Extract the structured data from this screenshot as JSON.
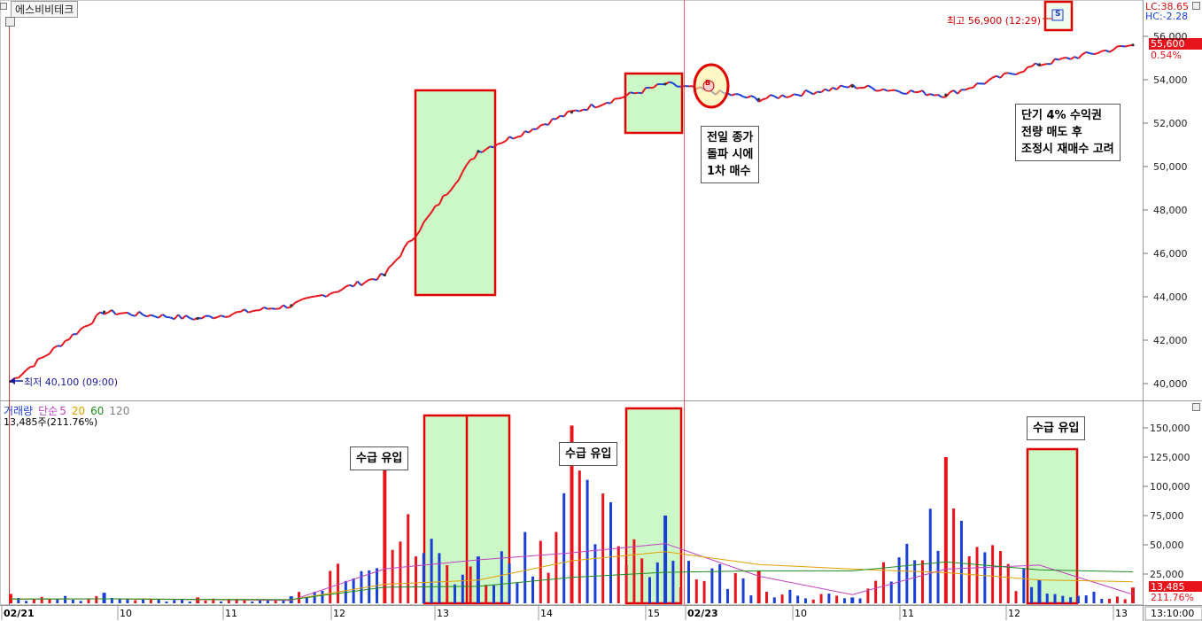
{
  "window": {
    "stock_name": "에스비비테크"
  },
  "price_panel": {
    "lc_label": "LC:38.65",
    "hc_label": "HC:-2.28",
    "current_price": "55,600",
    "change_pct": "0.54%",
    "high_label": "최고 56,900 (12:29)",
    "low_label": "최저 40,100 (09:00)",
    "buy_marker": "B",
    "sell_marker": "S",
    "y_ticks": [
      "56,000",
      "54,000",
      "52,000",
      "50,000",
      "48,000",
      "46,000",
      "44,000",
      "42,000",
      "40,000"
    ]
  },
  "volume_panel": {
    "legend": [
      "거래량",
      "단순",
      "5",
      "20",
      "60",
      "120"
    ],
    "current_volume": "13,485주(211.76%)",
    "current_volume_box": "13,485",
    "current_pct_box": "211.76%",
    "y_ticks": [
      "150,000",
      "125,000",
      "100,000",
      "75,000",
      "50,000",
      "25,000"
    ]
  },
  "x_axis": {
    "labels": [
      "02/21",
      "10",
      "11",
      "12",
      "13",
      "14",
      "15",
      "02/23",
      "10",
      "11",
      "12",
      "13"
    ],
    "time_box": "13:10:00"
  },
  "annotations": {
    "breakout": "전일 종가\n돌파 시에\n1차 매수",
    "take_profit": "단기 4% 수익권\n전량 매도 후\n조정시 재매수 고려",
    "inflow": "수급 유입"
  },
  "colors": {
    "up": "#e8141c",
    "down": "#1a3fd6",
    "highlight_fill": "#ccf8c8",
    "highlight_border": "#e00000",
    "ma5": "#c040c0",
    "ma20": "#e0a000",
    "ma60": "#1e8c1e",
    "ma120": "#808080"
  },
  "chart_data": [
    {
      "type": "candlestick",
      "title": "",
      "x": [
        "09:00",
        "10:00",
        "11:00",
        "12:00",
        "13:00",
        "14:00",
        "15:00",
        "09:00",
        "10:00",
        "11:00",
        "12:00",
        "13:00",
        "13:10"
      ],
      "y": [
        40100,
        43300,
        43000,
        43600,
        45000,
        50700,
        52500,
        53800,
        53100,
        53700,
        53300,
        54700,
        55600
      ],
      "ylim": [
        39300,
        57000
      ],
      "high": 56900,
      "low": 40100,
      "last": 55600
    },
    {
      "type": "bar",
      "title": "거래량",
      "x": [
        "09:00",
        "10:00",
        "11:00",
        "12:00",
        "13:00",
        "14:00",
        "15:00",
        "09:00",
        "10:00",
        "11:00",
        "12:00",
        "13:00",
        "13:10"
      ],
      "values": [
        8000,
        9000,
        5000,
        6000,
        125000,
        40000,
        152000,
        75000,
        28000,
        5000,
        125000,
        20000,
        13485
      ],
      "ylim": [
        0,
        170000
      ]
    }
  ]
}
